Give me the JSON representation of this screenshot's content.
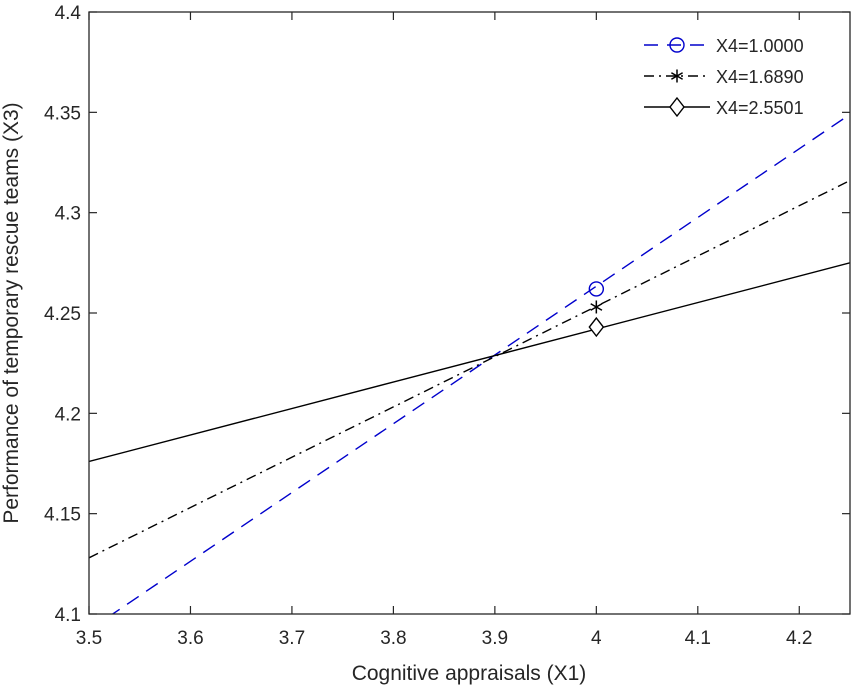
{
  "chart_data": {
    "type": "line",
    "title": "",
    "xlabel": "Cognitive appraisals (X1)",
    "ylabel": "Performance of temporary rescue teams (X3)",
    "xlim": [
      3.5,
      4.25
    ],
    "ylim": [
      4.1,
      4.4
    ],
    "xticks": [
      "3.5",
      "3.6",
      "3.7",
      "3.8",
      "3.9",
      "4",
      "4.1",
      "4.2"
    ],
    "yticks": [
      "4.1",
      "4.15",
      "4.2",
      "4.25",
      "4.3",
      "4.35",
      "4.4"
    ],
    "grid": false,
    "legend_position": "upper right",
    "series": [
      {
        "name": "X4=1.0000",
        "color": "#0000cc",
        "linestyle": "dashed",
        "marker": "circle",
        "x": [
          3.5,
          4.25
        ],
        "y": [
          4.092,
          4.349
        ],
        "marker_point": [
          4.0,
          4.262
        ]
      },
      {
        "name": "X4=1.6890",
        "color": "#000000",
        "linestyle": "dash-dot",
        "marker": "asterisk",
        "x": [
          3.5,
          4.25
        ],
        "y": [
          4.128,
          4.316
        ],
        "marker_point": [
          4.0,
          4.253
        ]
      },
      {
        "name": "X4=2.5501",
        "color": "#000000",
        "linestyle": "solid",
        "marker": "diamond",
        "x": [
          3.5,
          4.25
        ],
        "y": [
          4.176,
          4.275
        ],
        "marker_point": [
          4.0,
          4.243
        ]
      }
    ]
  }
}
